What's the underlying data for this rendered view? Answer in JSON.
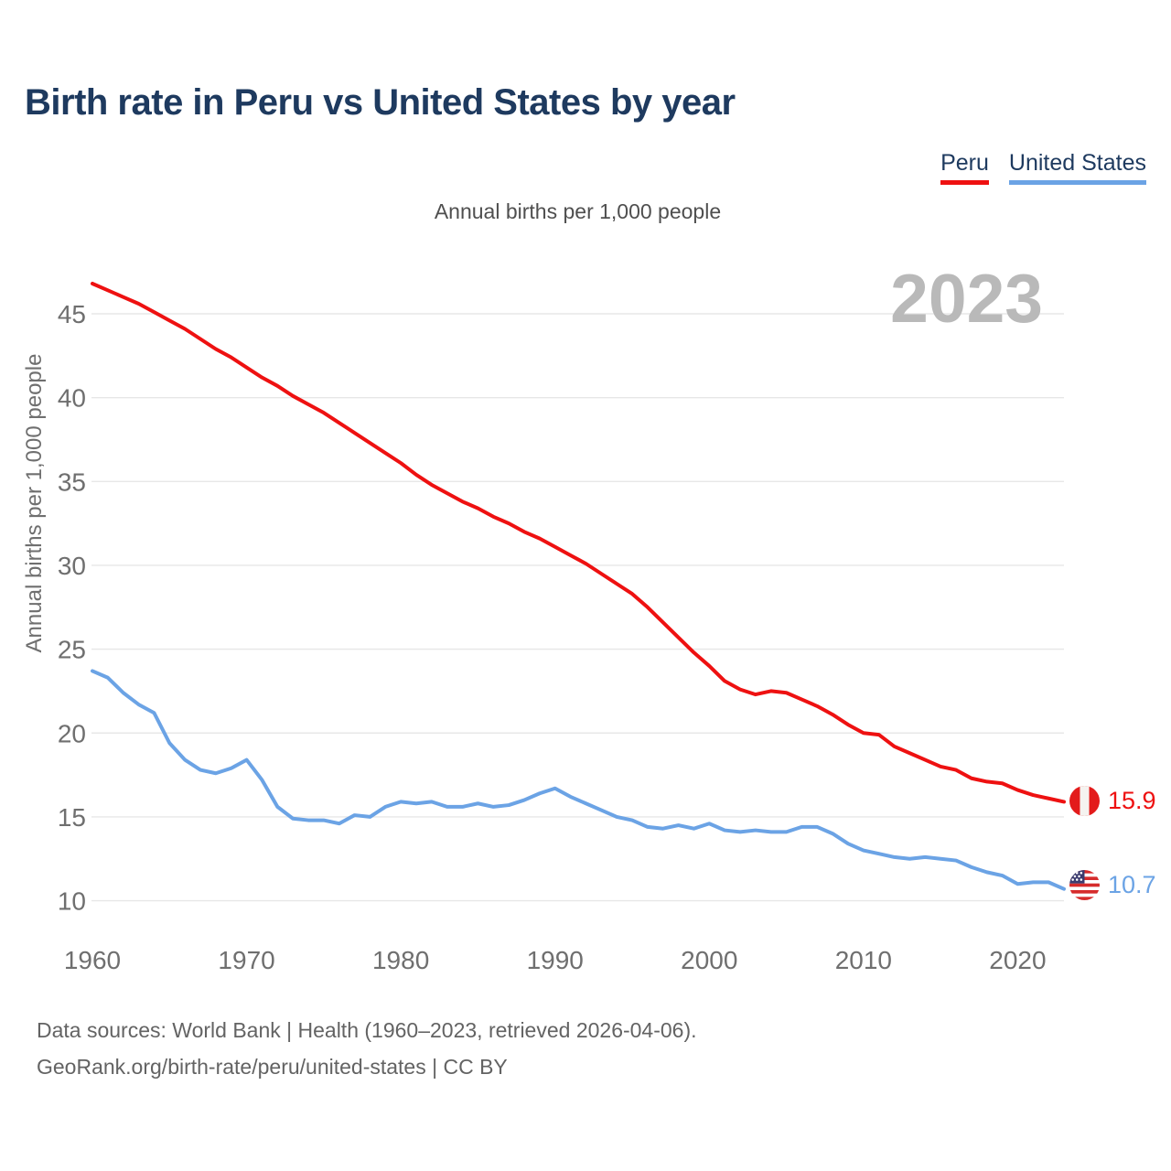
{
  "header": {
    "title": "Birth rate in Peru vs United States by year",
    "subtitle": "Annual births per 1,000 people"
  },
  "legend": [
    {
      "label": "Peru",
      "color": "#ee1111"
    },
    {
      "label": "United States",
      "color": "#6ba3e5"
    }
  ],
  "watermark": "2023",
  "chart_data": {
    "type": "line",
    "title": "Birth rate in Peru vs United States by year",
    "xlabel": "",
    "ylabel": "Annual births per 1,000 people",
    "grid": "horizontal",
    "legend_position": "top-right",
    "xlim": [
      1960,
      2023
    ],
    "ylim": [
      8.5,
      47.5
    ],
    "xticks": [
      1960,
      1970,
      1980,
      1990,
      2000,
      2010,
      2020
    ],
    "yticks": [
      10,
      15,
      20,
      25,
      30,
      35,
      40,
      45
    ],
    "years": [
      1960,
      1961,
      1962,
      1963,
      1964,
      1965,
      1966,
      1967,
      1968,
      1969,
      1970,
      1971,
      1972,
      1973,
      1974,
      1975,
      1976,
      1977,
      1978,
      1979,
      1980,
      1981,
      1982,
      1983,
      1984,
      1985,
      1986,
      1987,
      1988,
      1989,
      1990,
      1991,
      1992,
      1993,
      1994,
      1995,
      1996,
      1997,
      1998,
      1999,
      2000,
      2001,
      2002,
      2003,
      2004,
      2005,
      2006,
      2007,
      2008,
      2009,
      2010,
      2011,
      2012,
      2013,
      2014,
      2015,
      2016,
      2017,
      2018,
      2019,
      2020,
      2021,
      2022,
      2023
    ],
    "series": [
      {
        "name": "Peru",
        "color": "#ee1111",
        "end_label": "15.9",
        "values": [
          46.8,
          46.4,
          46.0,
          45.6,
          45.1,
          44.6,
          44.1,
          43.5,
          42.9,
          42.4,
          41.8,
          41.2,
          40.7,
          40.1,
          39.6,
          39.1,
          38.5,
          37.9,
          37.3,
          36.7,
          36.1,
          35.4,
          34.8,
          34.3,
          33.8,
          33.4,
          32.9,
          32.5,
          32.0,
          31.6,
          31.1,
          30.6,
          30.1,
          29.5,
          28.9,
          28.3,
          27.5,
          26.6,
          25.7,
          24.8,
          24.0,
          23.1,
          22.6,
          22.3,
          22.5,
          22.4,
          22.0,
          21.6,
          21.1,
          20.5,
          20.0,
          19.9,
          19.2,
          18.8,
          18.4,
          18.0,
          17.8,
          17.3,
          17.1,
          17.0,
          16.6,
          16.3,
          16.1,
          15.9
        ]
      },
      {
        "name": "United States",
        "color": "#6ba3e5",
        "end_label": "10.7",
        "values": [
          23.7,
          23.3,
          22.4,
          21.7,
          21.2,
          19.4,
          18.4,
          17.8,
          17.6,
          17.9,
          18.4,
          17.2,
          15.6,
          14.9,
          14.8,
          14.8,
          14.6,
          15.1,
          15.0,
          15.6,
          15.9,
          15.8,
          15.9,
          15.6,
          15.6,
          15.8,
          15.6,
          15.7,
          16.0,
          16.4,
          16.7,
          16.2,
          15.8,
          15.4,
          15.0,
          14.8,
          14.4,
          14.3,
          14.5,
          14.3,
          14.6,
          14.2,
          14.1,
          14.2,
          14.1,
          14.1,
          14.4,
          14.4,
          14.0,
          13.4,
          13.0,
          12.8,
          12.6,
          12.5,
          12.6,
          12.5,
          12.4,
          12.0,
          11.7,
          11.5,
          11.0,
          11.1,
          11.1,
          10.7
        ]
      }
    ]
  },
  "footer": {
    "line1": "Data sources: World Bank | Health (1960–2023, retrieved 2026-04-06).",
    "line2": "GeoRank.org/birth-rate/peru/united-states | CC BY"
  }
}
